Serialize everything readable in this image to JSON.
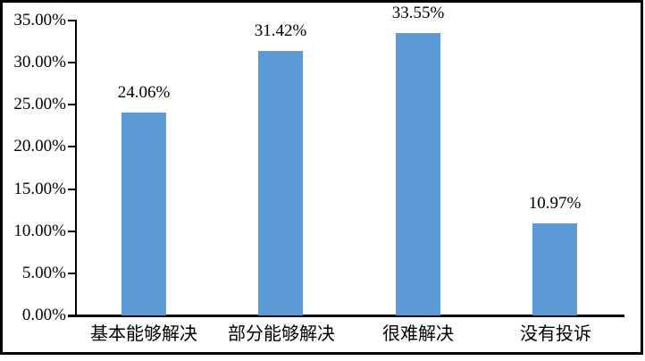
{
  "chart_data": {
    "type": "bar",
    "title": "",
    "xlabel": "",
    "ylabel": "",
    "categories": [
      "基本能够解决",
      "部分能够解决",
      "很难解决",
      "没有投诉"
    ],
    "values": [
      24.06,
      31.42,
      33.55,
      10.97
    ],
    "data_labels": [
      "24.06%",
      "31.42%",
      "33.55%",
      "10.97%"
    ],
    "y_ticks": [
      {
        "value": 0,
        "label": "0.00%"
      },
      {
        "value": 5,
        "label": "5.00%"
      },
      {
        "value": 10,
        "label": "10.00%"
      },
      {
        "value": 15,
        "label": "15.00%"
      },
      {
        "value": 20,
        "label": "20.00%"
      },
      {
        "value": 25,
        "label": "25.00%"
      },
      {
        "value": 30,
        "label": "30.00%"
      },
      {
        "value": 35,
        "label": "35.00%"
      }
    ],
    "ylim": [
      0,
      35
    ],
    "grid": false,
    "legend": null,
    "bar_color": "#5B9AD5",
    "axis_color": "#000000",
    "text_color": "#000000",
    "frame_color": "#000000",
    "background_color": "#ffffff"
  }
}
